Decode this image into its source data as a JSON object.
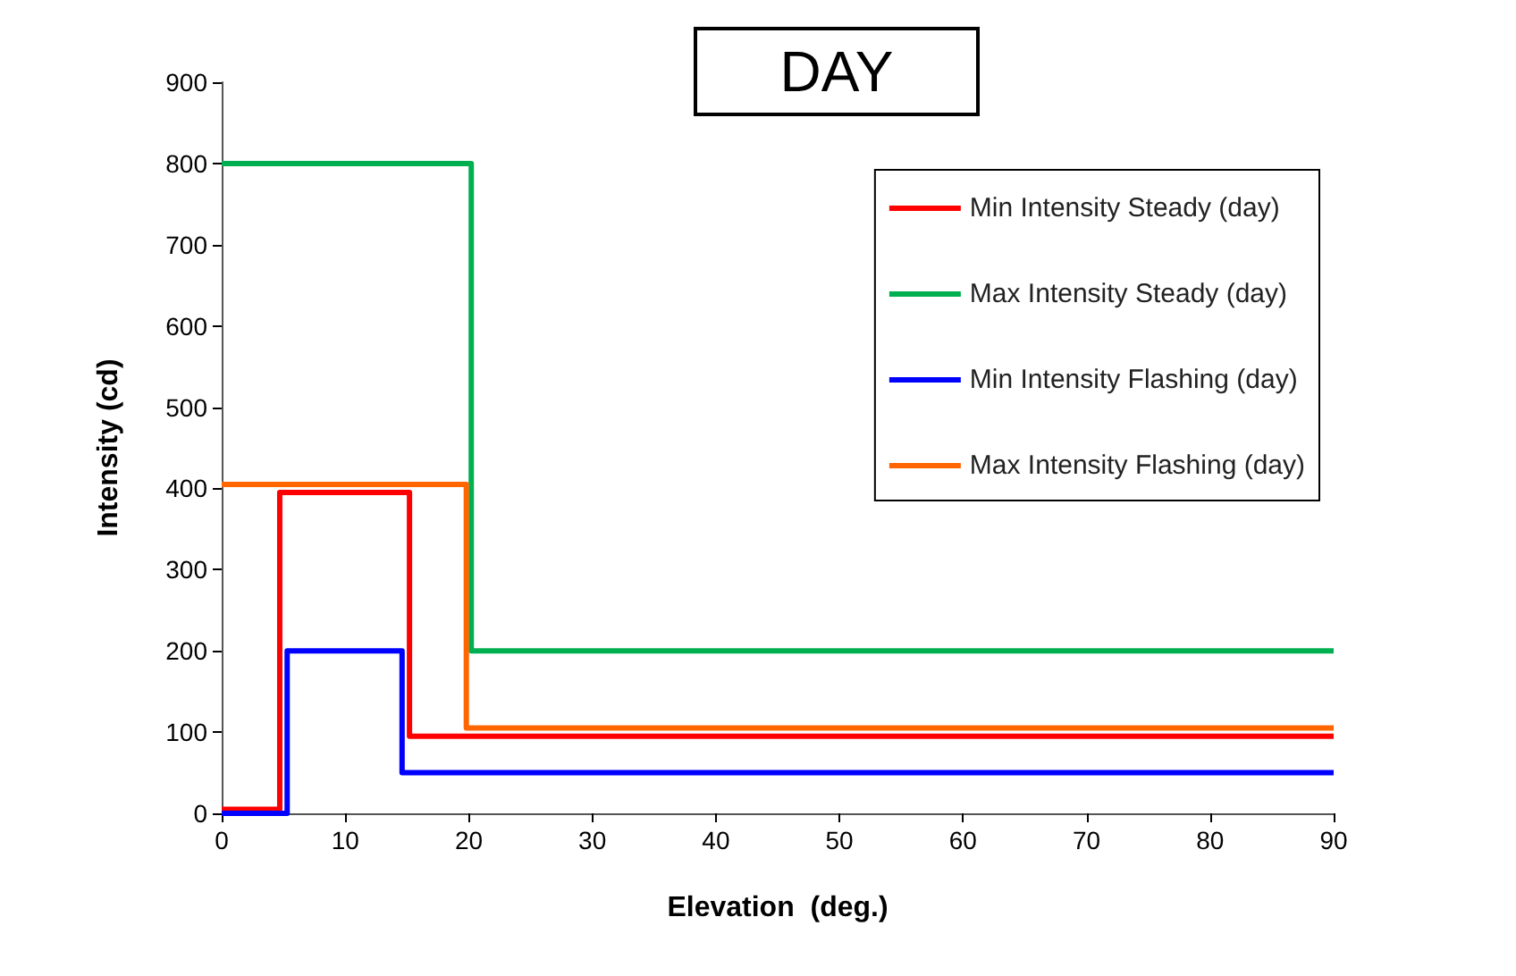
{
  "chart_data": {
    "type": "step",
    "title": "DAY",
    "xlabel": "Elevation  (deg.)",
    "ylabel": "Intensity (cd)",
    "xlim": [
      0,
      90
    ],
    "xticks": [
      0,
      10,
      20,
      30,
      40,
      50,
      60,
      70,
      80,
      90
    ],
    "ylim": [
      0,
      900
    ],
    "yticks": [
      0,
      100,
      200,
      300,
      400,
      500,
      600,
      700,
      800,
      900
    ],
    "grid": false,
    "legend": "top right",
    "marker": "none",
    "line_style": "solid",
    "series": [
      {
        "name": "Min Intensity Steady (day)",
        "color": "#ff0000",
        "x": [
          0,
          4.7,
          15.2,
          90
        ],
        "values": [
          5,
          395,
          95,
          95
        ]
      },
      {
        "name": "Max Intensity Steady (day)",
        "color": "#00b050",
        "x": [
          0,
          20.2,
          90
        ],
        "values": [
          800,
          200,
          200
        ]
      },
      {
        "name": "Min Intensity Flashing (day)",
        "color": "#0000ff",
        "x": [
          0,
          5.3,
          14.6,
          90
        ],
        "values": [
          0,
          200,
          50,
          50
        ]
      },
      {
        "name": "Max Intensity Flashing (day)",
        "color": "#ff6600",
        "x": [
          0,
          19.8,
          90
        ],
        "values": [
          405,
          105,
          105
        ]
      }
    ]
  }
}
